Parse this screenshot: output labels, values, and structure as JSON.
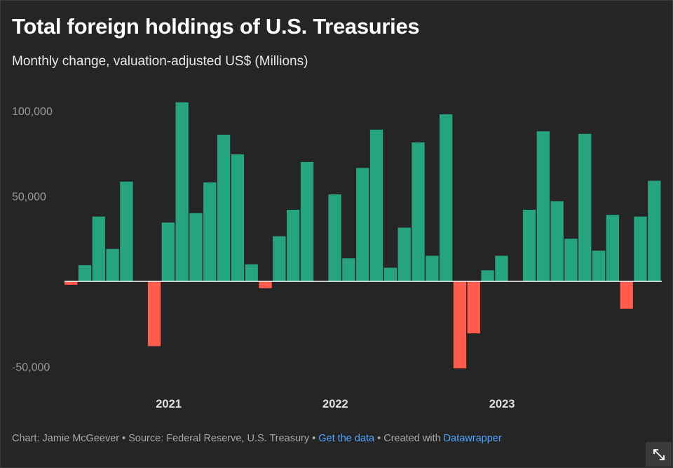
{
  "chart_data": {
    "type": "bar",
    "title": "Total foreign holdings of U.S. Treasuries",
    "subtitle": "Monthly change, valuation-adjusted US$ (Millions)",
    "xlabel": "",
    "ylabel": "",
    "ylim": [
      -57000,
      108000
    ],
    "yticks": [
      {
        "value": 100000,
        "label": "100,000"
      },
      {
        "value": 50000,
        "label": "50,000"
      },
      {
        "value": -50000,
        "label": "-50,000"
      }
    ],
    "year_labels": [
      {
        "label": "2021",
        "month_index": 7.5
      },
      {
        "label": "2022",
        "month_index": 19.5
      },
      {
        "label": "2023",
        "month_index": 31.5
      }
    ],
    "values": [
      -2000,
      9500,
      38000,
      19000,
      58500,
      0,
      -38000,
      34500,
      105000,
      40000,
      58000,
      86000,
      74500,
      10000,
      -4000,
      26500,
      42000,
      70000,
      0,
      51000,
      13500,
      66500,
      89000,
      8000,
      31500,
      81500,
      15000,
      98000,
      -51000,
      -30500,
      6500,
      15000,
      0,
      42000,
      88000,
      47000,
      25000,
      86500,
      18000,
      39000,
      -16000,
      38000,
      59000
    ],
    "positive_color": "#26a37f",
    "negative_color": "#ff5c4d",
    "zero_line_color": "#ffffff"
  },
  "footer": {
    "credit": "Chart: Jamie McGeever",
    "sep1": " • ",
    "source": "Source: Federal Reserve, U.S. Treasury",
    "sep2": " • ",
    "get_data": "Get the data",
    "sep3": " • ",
    "created_with": "Created with ",
    "tool": "Datawrapper"
  },
  "expand_icon": "expand-diagonal-icon"
}
